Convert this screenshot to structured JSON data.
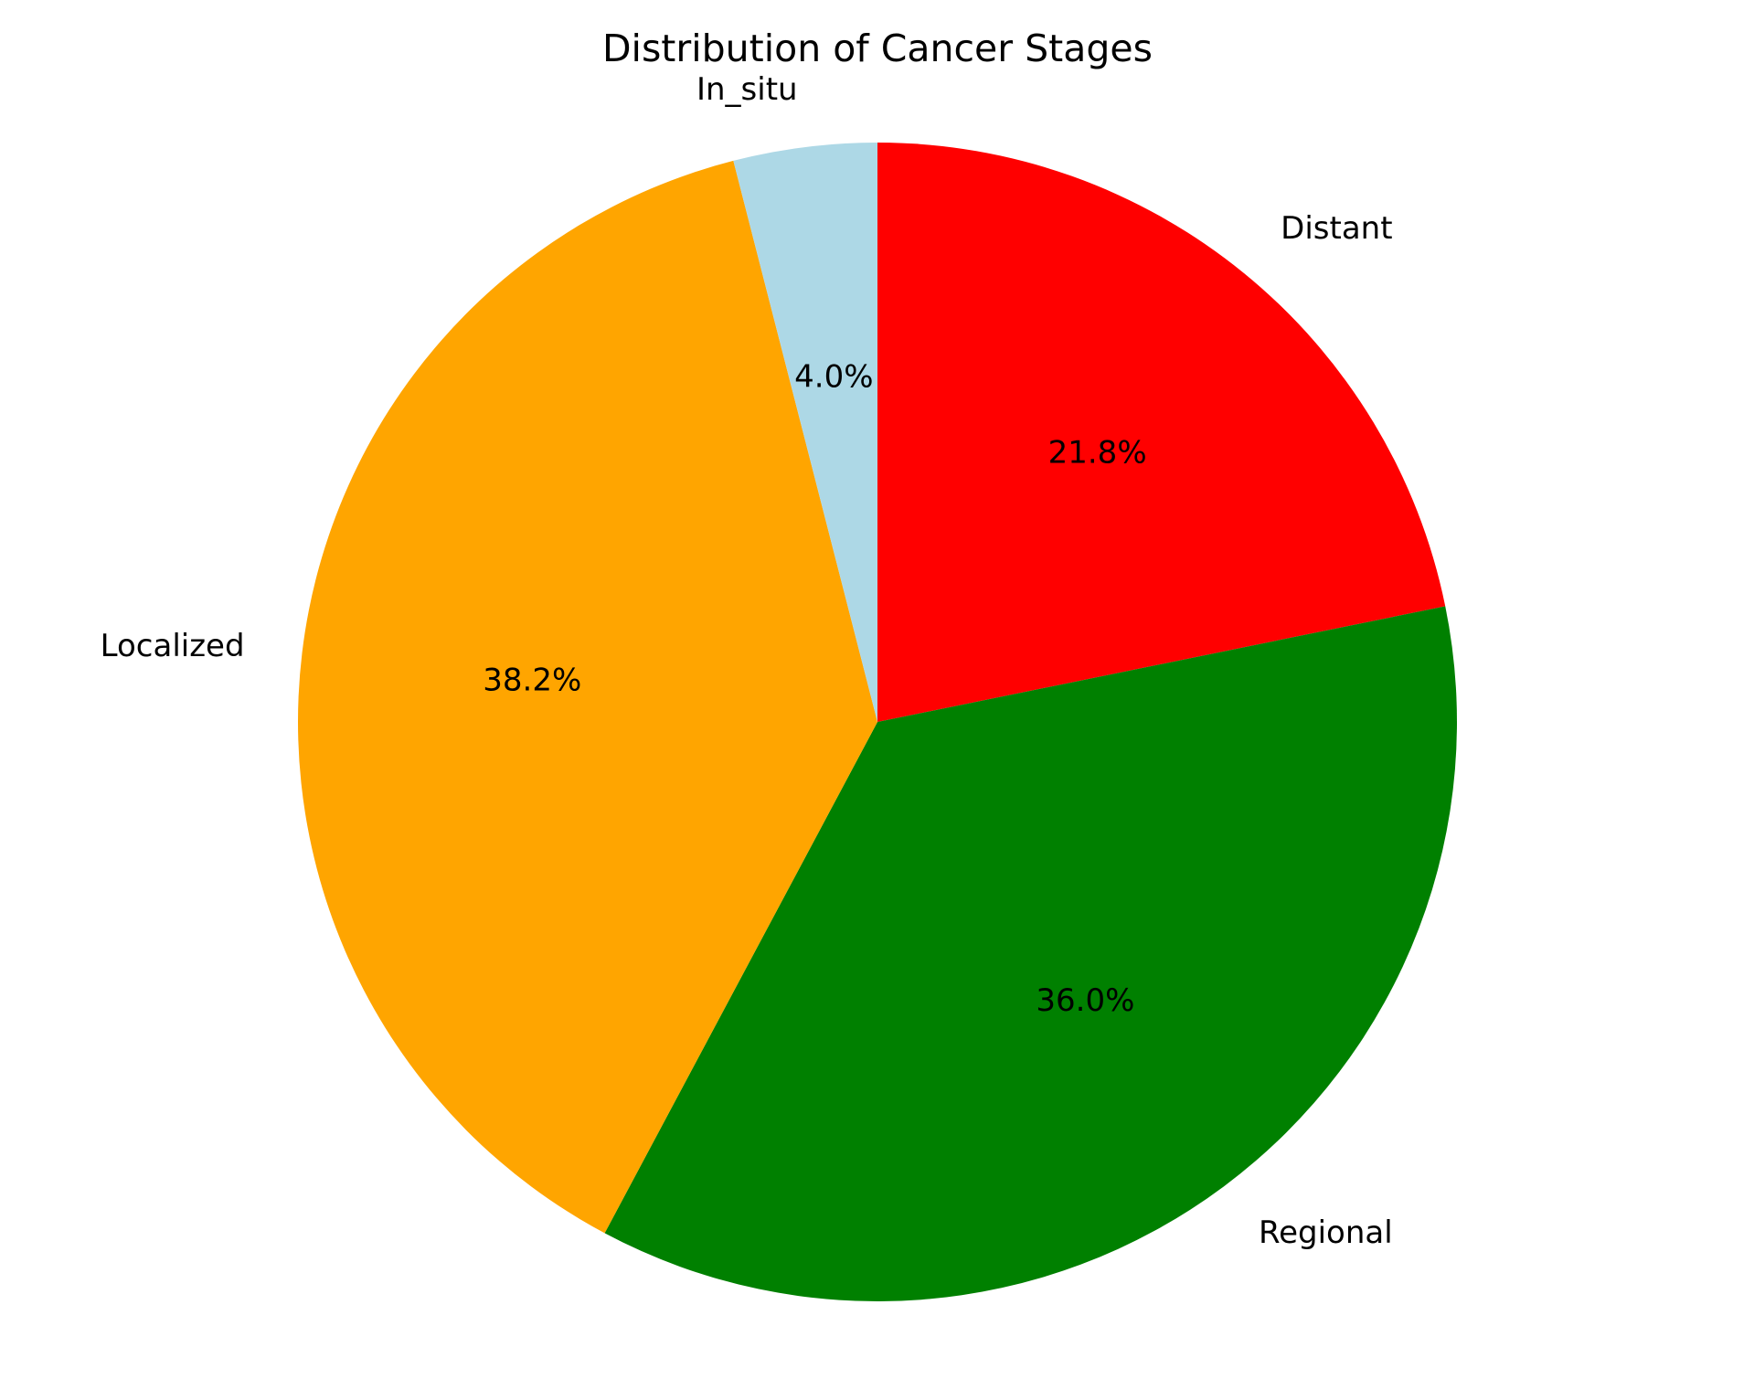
{
  "chart_data": {
    "type": "pie",
    "title": "Distribution of Cancer Stages",
    "start_angle_deg": 90,
    "direction": "clockwise",
    "slices": [
      {
        "label": "Distant",
        "value": 21.8,
        "pct_text": "21.8%",
        "color": "#ff0000"
      },
      {
        "label": "Regional",
        "value": 36.0,
        "pct_text": "36.0%",
        "color": "#008000"
      },
      {
        "label": "Localized",
        "value": 38.2,
        "pct_text": "38.2%",
        "color": "#ffa500"
      },
      {
        "label": "In_situ",
        "value": 4.0,
        "pct_text": "4.0%",
        "color": "#add8e6"
      }
    ]
  }
}
